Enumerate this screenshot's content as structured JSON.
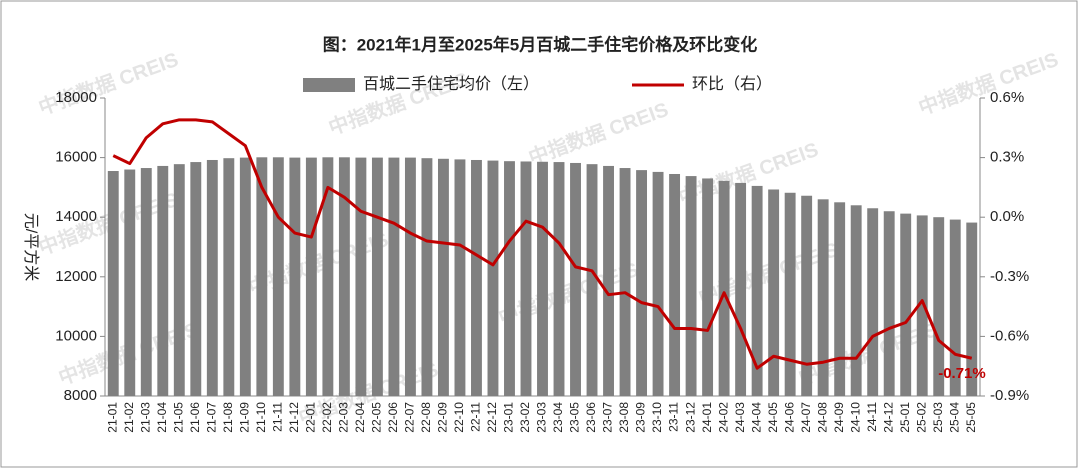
{
  "chart_data": {
    "type": "bar-line",
    "title": "图：2021年1月至2025年5月百城二手住宅价格及环比变化",
    "ylabel": "元/平方米",
    "watermark": "中指数据 CREIS",
    "categories": [
      "21-01",
      "21-02",
      "21-03",
      "21-04",
      "21-05",
      "21-06",
      "21-07",
      "21-08",
      "21-09",
      "21-10",
      "21-11",
      "21-12",
      "22-01",
      "22-02",
      "22-03",
      "22-04",
      "22-05",
      "22-06",
      "22-07",
      "22-08",
      "22-09",
      "22-10",
      "22-11",
      "22-12",
      "23-01",
      "23-02",
      "23-03",
      "23-04",
      "23-05",
      "23-06",
      "23-07",
      "23-08",
      "23-09",
      "23-10",
      "23-11",
      "23-12",
      "24-01",
      "24-02",
      "24-03",
      "24-04",
      "24-05",
      "24-06",
      "24-07",
      "24-08",
      "24-09",
      "24-10",
      "24-11",
      "24-12",
      "25-01",
      "25-02",
      "25-03",
      "25-04",
      "25-05"
    ],
    "series": [
      {
        "name": "百城二手住宅均价（左）",
        "color": "#808080",
        "type": "bar",
        "values": [
          15550,
          15600,
          15650,
          15720,
          15780,
          15850,
          15920,
          15980,
          16000,
          16010,
          16010,
          16000,
          16000,
          16010,
          16010,
          16000,
          16000,
          16000,
          16000,
          15980,
          15960,
          15940,
          15920,
          15900,
          15880,
          15870,
          15860,
          15850,
          15820,
          15780,
          15720,
          15650,
          15580,
          15520,
          15450,
          15380,
          15300,
          15220,
          15150,
          15050,
          14930,
          14820,
          14720,
          14600,
          14500,
          14400,
          14300,
          14200,
          14120,
          14060,
          14000,
          13920,
          13820
        ]
      },
      {
        "name": "环比（右）",
        "color": "#c00000",
        "type": "line",
        "axis": "y2",
        "values": [
          0.31,
          0.27,
          0.4,
          0.47,
          0.49,
          0.49,
          0.48,
          0.42,
          0.36,
          0.15,
          0.0,
          -0.08,
          -0.1,
          0.15,
          0.1,
          0.03,
          0.0,
          -0.03,
          -0.08,
          -0.12,
          -0.13,
          -0.14,
          -0.19,
          -0.24,
          -0.12,
          -0.02,
          -0.05,
          -0.13,
          -0.25,
          -0.27,
          -0.39,
          -0.38,
          -0.43,
          -0.45,
          -0.56,
          -0.56,
          -0.57,
          -0.38,
          -0.56,
          -0.76,
          -0.7,
          -0.72,
          -0.74,
          -0.73,
          -0.71,
          -0.71,
          -0.6,
          -0.56,
          -0.53,
          -0.42,
          -0.62,
          -0.69,
          -0.71
        ],
        "value_labels": [
          null,
          null,
          null,
          null,
          null,
          null,
          null,
          null,
          null,
          null,
          null,
          null,
          null,
          null,
          null,
          null,
          null,
          null,
          null,
          null,
          null,
          null,
          null,
          null,
          null,
          null,
          null,
          null,
          null,
          null,
          null,
          null,
          null,
          null,
          null,
          null,
          null,
          null,
          null,
          null,
          null,
          null,
          null,
          null,
          null,
          null,
          null,
          null,
          null,
          null,
          null,
          null,
          "-0.71%"
        ]
      }
    ],
    "ylim": [
      8000,
      18000
    ],
    "yticks": [
      8000,
      10000,
      12000,
      14000,
      16000,
      18000
    ],
    "y2lim": [
      -0.9,
      0.6
    ],
    "y2ticks": [
      {
        "value": -0.9,
        "label": "-0.9%"
      },
      {
        "value": -0.6,
        "label": "-0.6%"
      },
      {
        "value": -0.3,
        "label": "-0.3%"
      },
      {
        "value": 0.0,
        "label": "0.0%"
      },
      {
        "value": 0.3,
        "label": "0.3%"
      },
      {
        "value": 0.6,
        "label": "0.6%"
      }
    ],
    "legend": "top",
    "grid": false
  }
}
